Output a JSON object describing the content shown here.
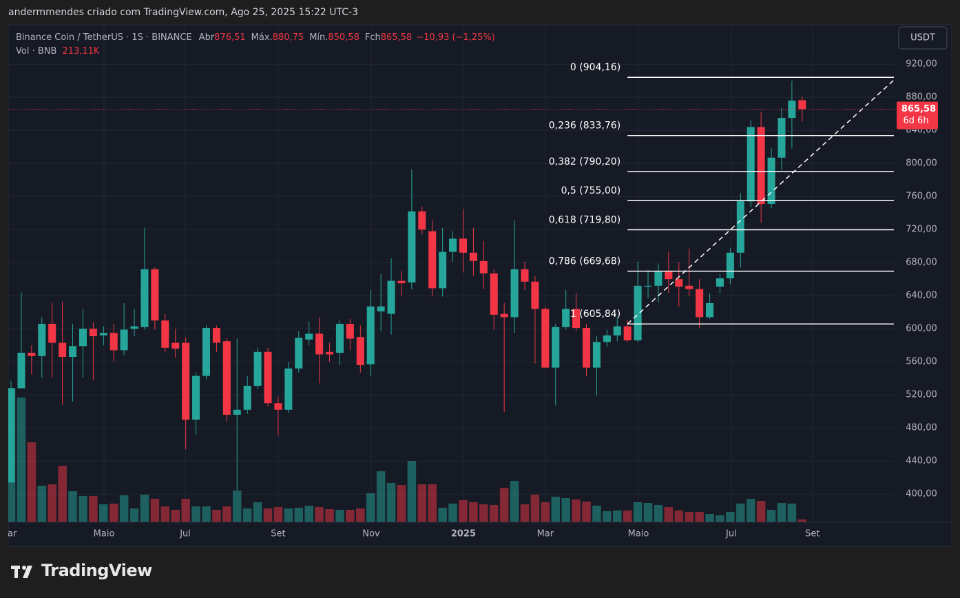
{
  "header": {
    "author": "andermmendes criado com TradingView.com, Ago 25, 2025 15:22 UTC-3"
  },
  "legend": {
    "symbol": "Binance Coin / TetherUS · 1S · BINANCE",
    "items": [
      {
        "label": "Abr",
        "value": "876,51"
      },
      {
        "label": "Máx.",
        "value": "880,75"
      },
      {
        "label": "Mín.",
        "value": "850,58"
      },
      {
        "label": "Fch",
        "value": "865,58"
      }
    ],
    "change": "−10,93 (−1,25%)",
    "volume_title": "Vol · BNB",
    "volume_label": "213,11K"
  },
  "currency_button": "USDT",
  "chart_data": {
    "type": "candlestick",
    "up_color": "#26a69a",
    "down_color": "#f23645",
    "open": [
      414,
      528,
      571,
      567,
      606,
      583,
      566,
      579,
      600,
      592,
      595,
      574,
      600,
      602,
      672,
      610,
      583,
      583,
      490,
      543,
      601,
      585,
      496,
      502,
      531,
      572,
      510,
      502,
      552,
      587,
      594,
      572,
      571,
      606,
      590,
      557,
      621,
      618,
      658,
      656,
      742,
      718,
      649,
      693,
      709,
      692,
      682,
      667,
      618,
      614,
      672,
      657,
      624,
      553,
      602,
      624,
      601,
      553,
      584,
      592,
      603,
      586,
      651,
      652,
      669,
      660,
      652,
      648,
      614,
      651,
      661,
      692,
      754,
      844,
      751,
      807,
      855,
      876.51
    ],
    "high": [
      537,
      644,
      580,
      614,
      631,
      633,
      606,
      624,
      608,
      603,
      606,
      631,
      624,
      722,
      674,
      618,
      600,
      589,
      547,
      604,
      604,
      589,
      588,
      543,
      577,
      577,
      518,
      560,
      597,
      609,
      614,
      583,
      610,
      612,
      604,
      647,
      666,
      685,
      670,
      793,
      748,
      731,
      722,
      718,
      745,
      722,
      706,
      672,
      631,
      731,
      681,
      664,
      627,
      606,
      647,
      643,
      606,
      591,
      599,
      614,
      610,
      681,
      671,
      679,
      693,
      681,
      697,
      660,
      643,
      666,
      698,
      764,
      852,
      862,
      818,
      867,
      900,
      880.75
    ],
    "low": [
      414,
      528,
      545,
      541,
      541,
      508,
      512,
      541,
      538,
      580,
      561,
      568,
      591,
      599,
      599,
      572,
      565,
      454,
      472,
      539,
      572,
      488,
      405,
      497,
      527,
      506,
      471,
      498,
      547,
      580,
      534,
      560,
      556,
      574,
      547,
      543,
      597,
      593,
      640,
      648,
      714,
      639,
      639,
      681,
      668,
      664,
      648,
      599,
      499,
      595,
      647,
      558,
      552,
      507,
      599,
      598,
      543,
      519,
      578,
      585,
      584,
      584,
      637,
      632,
      643,
      627,
      639,
      601,
      612,
      643,
      654,
      674,
      747,
      728,
      746,
      792,
      818,
      850.58
    ],
    "close": [
      528,
      571,
      567,
      606,
      583,
      566,
      579,
      600,
      591,
      595,
      574,
      599,
      603,
      672,
      610,
      577,
      576,
      490,
      543,
      601,
      583,
      496,
      502,
      531,
      572,
      510,
      502,
      552,
      589,
      594,
      569,
      569,
      606,
      588,
      556,
      627,
      627,
      658,
      655,
      742,
      720,
      649,
      693,
      709,
      692,
      682,
      667,
      617,
      614,
      672,
      657,
      624,
      553,
      602,
      624,
      601,
      553,
      584,
      592,
      603,
      586,
      652,
      652,
      669,
      660,
      651,
      648,
      614,
      631,
      661,
      692,
      755,
      844,
      751,
      807,
      855,
      876,
      865.58
    ],
    "volume": [
      10335,
      9593,
      6148,
      2809,
      2915,
      4346,
      2385,
      2014,
      2014,
      1378,
      1431,
      2067,
      1060,
      2120,
      1802,
      1219,
      954,
      1802,
      1219,
      1219,
      954,
      1219,
      2438,
      1060,
      1537,
      1060,
      1166,
      1060,
      1113,
      1272,
      1166,
      1007,
      954,
      954,
      1060,
      2226,
      3922,
      3021,
      2862,
      4717,
      2915,
      2915,
      1113,
      1431,
      1696,
      1537,
      1378,
      1325,
      2650,
      3180,
      1378,
      2120,
      1537,
      1961,
      1855,
      1749,
      1590,
      1272,
      848,
      901,
      901,
      1537,
      1484,
      1325,
      1166,
      901,
      795,
      795,
      636,
      530,
      795,
      1431,
      1802,
      1643,
      954,
      1484,
      1431,
      213.11
    ],
    "last_price_label": "865,58",
    "countdown": "6d 6h",
    "xlim": [
      -0.27,
      86.06
    ],
    "xticks": [
      {
        "value": -0.27,
        "label": "Mar"
      },
      {
        "value": 9.05,
        "label": "Maio"
      },
      {
        "value": 16.96,
        "label": "Jul"
      },
      {
        "value": 26.0,
        "label": "Set"
      },
      {
        "value": 35.05,
        "label": "Nov"
      },
      {
        "value": 44.03,
        "label": "2025"
      },
      {
        "value": 52.0,
        "label": "Mar"
      },
      {
        "value": 61.06,
        "label": "Maio"
      },
      {
        "value": 70.1,
        "label": "Jul"
      },
      {
        "value": 78.0,
        "label": "Set"
      }
    ],
    "ylim": [
      366,
      966
    ],
    "yticks": [
      {
        "value": 920,
        "label": "920,00"
      },
      {
        "value": 880,
        "label": "880,00"
      },
      {
        "value": 840,
        "label": "840,00"
      },
      {
        "value": 800,
        "label": "800,00"
      },
      {
        "value": 760,
        "label": "760,00"
      },
      {
        "value": 720,
        "label": "720,00"
      },
      {
        "value": 680,
        "label": "680,00"
      },
      {
        "value": 640,
        "label": "640,00"
      },
      {
        "value": 600,
        "label": "600,00"
      },
      {
        "value": 560,
        "label": "560,00"
      },
      {
        "value": 520,
        "label": "520,00"
      },
      {
        "value": 480,
        "label": "480,00"
      },
      {
        "value": 440,
        "label": "440,00"
      },
      {
        "value": 400,
        "label": "400,00"
      }
    ],
    "grid": true,
    "fib_levels": [
      {
        "value": 904.16,
        "label": "0 (904,16)"
      },
      {
        "value": 833.76,
        "label": "0,236 (833,76)"
      },
      {
        "value": 790.2,
        "label": "0,382 (790,20)"
      },
      {
        "value": 755.0,
        "label": "0,5 (755,00)"
      },
      {
        "value": 719.8,
        "label": "0,618 (719,80)"
      },
      {
        "value": 669.68,
        "label": "0,786 (669,68)"
      },
      {
        "value": 605.84,
        "label": "1 (605,84)"
      }
    ]
  },
  "footer": {
    "brand": "TradingView"
  }
}
